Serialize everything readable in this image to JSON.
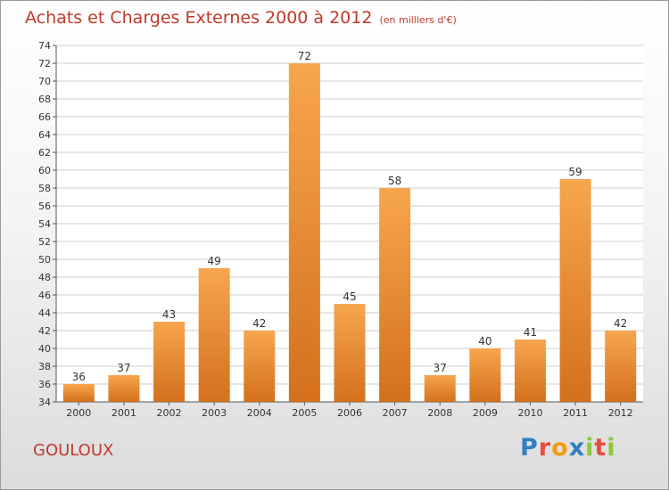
{
  "title": {
    "main": "Achats et Charges Externes 2000 à 2012",
    "unit": "(en milliers d'€)"
  },
  "commune": "GOULOUX",
  "logo": {
    "text": "Proxiti",
    "letters": [
      {
        "ch": "P",
        "color": "#2f7fc1"
      },
      {
        "ch": "r",
        "color": "#e74c3c"
      },
      {
        "ch": "o",
        "color": "#f39c12"
      },
      {
        "ch": "x",
        "color": "#2f7fc1"
      },
      {
        "ch": "i",
        "color": "#8cc63f"
      },
      {
        "ch": "t",
        "color": "#e74c3c"
      },
      {
        "ch": "i",
        "color": "#8cc63f"
      }
    ]
  },
  "colors": {
    "bar_top": "#f7a64e",
    "bar_bottom": "#d4701c",
    "title": "#c0392b",
    "grid": "#cfcfcf"
  },
  "chart_data": {
    "type": "bar",
    "categories": [
      "2000",
      "2001",
      "2002",
      "2003",
      "2004",
      "2005",
      "2006",
      "2007",
      "2008",
      "2009",
      "2010",
      "2011",
      "2012"
    ],
    "values": [
      36,
      37,
      43,
      49,
      42,
      72,
      45,
      58,
      37,
      40,
      41,
      59,
      42
    ],
    "ylim": [
      34,
      74
    ],
    "ytick_step": 2,
    "grid": true,
    "legend": "none",
    "data_labels": true
  }
}
